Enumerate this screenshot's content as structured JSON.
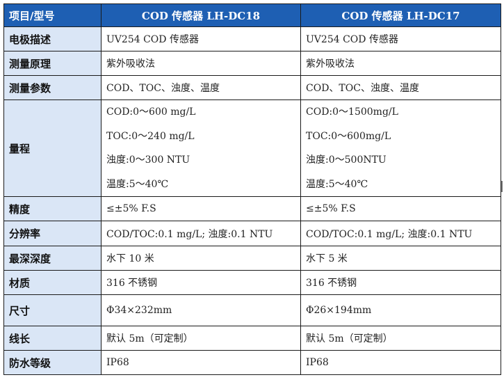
{
  "table": {
    "headers": [
      "项目/型号",
      "COD 传感器 LH-DC18",
      "COD 传感器  LH-DC17"
    ],
    "rows": [
      {
        "label": "电极描述",
        "dc18": [
          "UV254 COD 传感器"
        ],
        "dc17": [
          "UV254 COD 传感器"
        ]
      },
      {
        "label": "测量原理",
        "dc18": [
          "紫外吸收法"
        ],
        "dc17": [
          "紫外吸收法"
        ]
      },
      {
        "label": "测量参数",
        "dc18": [
          "COD、TOC、浊度、温度"
        ],
        "dc17": [
          "COD、TOC、浊度、温度"
        ]
      },
      {
        "label": "量程",
        "dc18": [
          "COD:0～600 mg/L",
          "TOC:0～240 mg/L",
          "浊度:0～300 NTU",
          "温度:5～40℃"
        ],
        "dc17": [
          "COD:0～1500mg/L",
          "TOC:0～600mg/L",
          "浊度:0～500NTU",
          "温度:5～40℃"
        ]
      },
      {
        "label": "精度",
        "dc18": [
          "≤±5% F.S"
        ],
        "dc17": [
          "≤±5% F.S"
        ]
      },
      {
        "label": "分辨率",
        "dc18": [
          "COD/TOC:0.1 mg/L; 浊度:0.1 NTU"
        ],
        "dc17": [
          "COD/TOC:0.1 mg/L; 浊度:0.1 NTU"
        ]
      },
      {
        "label": "最深深度",
        "dc18": [
          "水下 10 米"
        ],
        "dc17": [
          "水下 5 米"
        ]
      },
      {
        "label": "材质",
        "dc18": [
          "316 不锈钢"
        ],
        "dc17": [
          "316 不锈钢"
        ]
      },
      {
        "label": "尺寸",
        "dc18": [
          "Φ34×232mm"
        ],
        "dc17": [
          "Φ26×194mm"
        ]
      },
      {
        "label": "线长",
        "dc18": [
          "默认 5m（可定制）"
        ],
        "dc17": [
          "默认 5m（可定制）"
        ]
      },
      {
        "label": "防水等级",
        "dc18": [
          "IP68"
        ],
        "dc17": [
          "IP68"
        ]
      }
    ]
  }
}
